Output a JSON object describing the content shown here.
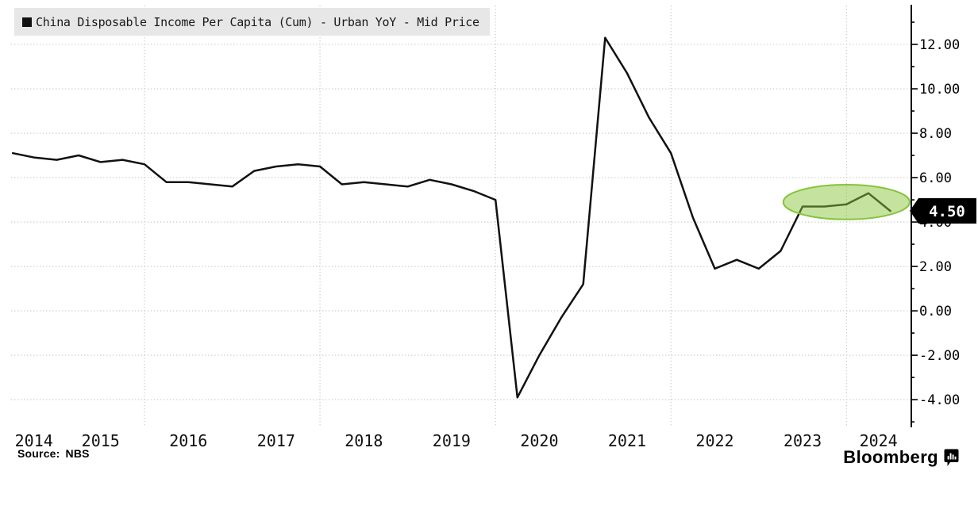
{
  "legend": {
    "label": "China Disposable Income Per Capita (Cum) - Urban YoY - Mid Price",
    "swatch_color": "#111111",
    "bg": "#e7e7e7"
  },
  "source": {
    "label": "Source:",
    "value": "NBS"
  },
  "branding": {
    "wordmark": "Bloomberg",
    "icon": "bloomberg-terminal-icon"
  },
  "last_value_badge": {
    "label": "4.50",
    "value": 4.5,
    "bg": "#000000",
    "text_color": "#ffffff"
  },
  "colors": {
    "series_line": "#111111",
    "grid": "#c8c8c8",
    "axis": "#000000",
    "legend_bg": "#e7e7e7",
    "highlight_fill": "rgba(141,198,63,0.5)",
    "highlight_stroke": "#85c43d"
  },
  "axes": {
    "y_major_ticks": [
      {
        "v": 12,
        "label": "12.00"
      },
      {
        "v": 10,
        "label": "10.00"
      },
      {
        "v": 8,
        "label": "8.00"
      },
      {
        "v": 6,
        "label": "6.00"
      },
      {
        "v": 4,
        "label": "4.00"
      },
      {
        "v": 2,
        "label": "2.00"
      },
      {
        "v": 0,
        "label": "0.00"
      },
      {
        "v": -2,
        "label": "-2.00"
      },
      {
        "v": -4,
        "label": "-4.00"
      }
    ],
    "y_minor_tick_values": [
      -5,
      -3,
      -1,
      1,
      3,
      5,
      7,
      9,
      11,
      13
    ],
    "x_year_labels": [
      "2014",
      "2015",
      "2016",
      "2017",
      "2018",
      "2019",
      "2020",
      "2021",
      "2022",
      "2023",
      "2024"
    ],
    "x_gridline_years": [
      2016,
      2018,
      2020,
      2022,
      2024
    ]
  },
  "chart_data": {
    "type": "line",
    "title": "China Disposable Income Per Capita (Cum) - Urban YoY - Mid Price",
    "xlabel": "",
    "ylabel": "",
    "legend_position": "top-left",
    "grid": "dotted-both",
    "xlim": [
      2014.48,
      2024.73
    ],
    "ylim": [
      -5.21,
      13.75
    ],
    "last_value": 4.5,
    "series": [
      {
        "name": "China Disposable Income Per Capita (Cum) - Urban YoY - Mid Price",
        "units": "%",
        "points": [
          {
            "period": "2014 Q2",
            "t": 2014.5,
            "v": 7.1
          },
          {
            "period": "2014 Q3",
            "t": 2014.75,
            "v": 6.9
          },
          {
            "period": "2014 Q4",
            "t": 2015.0,
            "v": 6.8
          },
          {
            "period": "2015 Q1",
            "t": 2015.25,
            "v": 7.0
          },
          {
            "period": "2015 Q2",
            "t": 2015.5,
            "v": 6.7
          },
          {
            "period": "2015 Q3",
            "t": 2015.75,
            "v": 6.8
          },
          {
            "period": "2015 Q4",
            "t": 2016.0,
            "v": 6.6
          },
          {
            "period": "2016 Q1",
            "t": 2016.25,
            "v": 5.8
          },
          {
            "period": "2016 Q2",
            "t": 2016.5,
            "v": 5.8
          },
          {
            "period": "2016 Q3",
            "t": 2016.75,
            "v": 5.7
          },
          {
            "period": "2016 Q4",
            "t": 2017.0,
            "v": 5.6
          },
          {
            "period": "2017 Q1",
            "t": 2017.25,
            "v": 6.3
          },
          {
            "period": "2017 Q2",
            "t": 2017.5,
            "v": 6.5
          },
          {
            "period": "2017 Q3",
            "t": 2017.75,
            "v": 6.6
          },
          {
            "period": "2017 Q4",
            "t": 2018.0,
            "v": 6.5
          },
          {
            "period": "2018 Q1",
            "t": 2018.25,
            "v": 5.7
          },
          {
            "period": "2018 Q2",
            "t": 2018.5,
            "v": 5.8
          },
          {
            "period": "2018 Q3",
            "t": 2018.75,
            "v": 5.7
          },
          {
            "period": "2018 Q4",
            "t": 2019.0,
            "v": 5.6
          },
          {
            "period": "2019 Q1",
            "t": 2019.25,
            "v": 5.9
          },
          {
            "period": "2019 Q2",
            "t": 2019.5,
            "v": 5.7
          },
          {
            "period": "2019 Q3",
            "t": 2019.75,
            "v": 5.4
          },
          {
            "period": "2019 Q4",
            "t": 2020.0,
            "v": 5.0
          },
          {
            "period": "2020 Q1",
            "t": 2020.25,
            "v": -3.9
          },
          {
            "period": "2020 Q2",
            "t": 2020.5,
            "v": -2.0
          },
          {
            "period": "2020 Q3",
            "t": 2020.75,
            "v": -0.3
          },
          {
            "period": "2020 Q4",
            "t": 2021.0,
            "v": 1.2
          },
          {
            "period": "2021 Q1",
            "t": 2021.25,
            "v": 12.3
          },
          {
            "period": "2021 Q2",
            "t": 2021.5,
            "v": 10.7
          },
          {
            "period": "2021 Q3",
            "t": 2021.75,
            "v": 8.7
          },
          {
            "period": "2021 Q4",
            "t": 2022.0,
            "v": 7.1
          },
          {
            "period": "2022 Q1",
            "t": 2022.25,
            "v": 4.2
          },
          {
            "period": "2022 Q2",
            "t": 2022.5,
            "v": 1.9
          },
          {
            "period": "2022 Q3",
            "t": 2022.75,
            "v": 2.3
          },
          {
            "period": "2022 Q4",
            "t": 2023.0,
            "v": 1.9
          },
          {
            "period": "2023 Q1",
            "t": 2023.25,
            "v": 2.7
          },
          {
            "period": "2023 Q2",
            "t": 2023.5,
            "v": 4.7
          },
          {
            "period": "2023 Q3",
            "t": 2023.75,
            "v": 4.7
          },
          {
            "period": "2023 Q4",
            "t": 2024.0,
            "v": 4.8
          },
          {
            "period": "2024 Q1",
            "t": 2024.25,
            "v": 5.3
          },
          {
            "period": "2024 Q2",
            "t": 2024.5,
            "v": 4.5
          }
        ]
      }
    ],
    "annotations": [
      {
        "type": "ellipse-highlight",
        "center_t": 2024.0,
        "center_v": 4.9,
        "rx_years": 0.72,
        "ry_units": 0.78
      }
    ]
  }
}
